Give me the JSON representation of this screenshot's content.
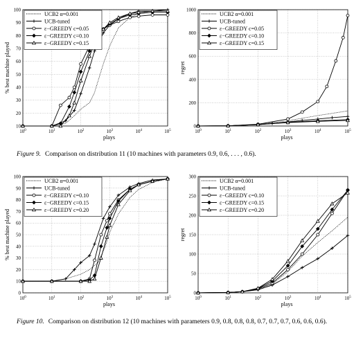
{
  "chart_data": [
    {
      "type": "line",
      "xscale": "log",
      "xlim": [
        1,
        100000
      ],
      "ylim": [
        10,
        100
      ],
      "yticks": [
        10,
        20,
        30,
        40,
        50,
        60,
        70,
        80,
        90,
        100
      ],
      "xlabel": "plays",
      "ylabel": "% best machine played",
      "legend_position": "top-left",
      "series": [
        {
          "name": "UCB2 α=0.001",
          "style": "dotted",
          "marker": "none",
          "x": [
            1,
            10,
            30,
            60,
            100,
            200,
            300,
            600,
            1000,
            2000,
            5000,
            10000,
            30000,
            100000
          ],
          "y": [
            10,
            10,
            12,
            18,
            23,
            28,
            36,
            58,
            72,
            86,
            94,
            97,
            99,
            100
          ]
        },
        {
          "name": "UCB-tuned",
          "style": "solid",
          "marker": "plus",
          "x": [
            1,
            10,
            30,
            60,
            100,
            200,
            300,
            600,
            1000,
            2000,
            5000,
            10000,
            30000,
            100000
          ],
          "y": [
            10,
            10,
            14,
            22,
            35,
            55,
            68,
            82,
            88,
            93,
            97,
            99,
            99,
            100
          ]
        },
        {
          "name": "ε−GREEDY c=0.05",
          "style": "solid",
          "marker": "circle",
          "x": [
            1,
            10,
            20,
            40,
            60,
            100,
            200,
            300,
            600,
            1000,
            2000,
            5000,
            10000,
            30000,
            100000
          ],
          "y": [
            10,
            10,
            26,
            32,
            40,
            58,
            72,
            78,
            85,
            88,
            91,
            94,
            95,
            96,
            96
          ]
        },
        {
          "name": "ε−GREEDY c=0.10",
          "style": "solid",
          "marker": "diamond",
          "x": [
            1,
            10,
            20,
            40,
            60,
            100,
            200,
            300,
            600,
            1000,
            2000,
            5000,
            10000,
            30000,
            100000
          ],
          "y": [
            10,
            10,
            12,
            25,
            36,
            52,
            68,
            76,
            85,
            89,
            93,
            96,
            97,
            98,
            98
          ]
        },
        {
          "name": "ε−GREEDY c=0.15",
          "style": "solid",
          "marker": "triangle",
          "x": [
            1,
            10,
            20,
            40,
            60,
            100,
            200,
            300,
            600,
            1000,
            2000,
            5000,
            10000,
            30000,
            100000
          ],
          "y": [
            10,
            10,
            10,
            18,
            28,
            45,
            64,
            74,
            85,
            90,
            94,
            97,
            98,
            99,
            99
          ]
        }
      ]
    },
    {
      "type": "line",
      "xscale": "log",
      "xlim": [
        1,
        100000
      ],
      "ylim": [
        0,
        1000
      ],
      "yticks": [
        0,
        200,
        400,
        600,
        800,
        1000
      ],
      "xlabel": "plays",
      "ylabel": "regret",
      "legend_position": "top-left",
      "series": [
        {
          "name": "UCB2 α=0.001",
          "style": "dotted",
          "marker": "none",
          "x": [
            1,
            10,
            100,
            1000,
            10000,
            100000
          ],
          "y": [
            0,
            2,
            12,
            45,
            90,
            130
          ]
        },
        {
          "name": "UCB-tuned",
          "style": "solid",
          "marker": "plus",
          "x": [
            1,
            10,
            100,
            300,
            1000,
            3000,
            10000,
            30000,
            100000
          ],
          "y": [
            0,
            2,
            12,
            22,
            35,
            48,
            60,
            72,
            82
          ]
        },
        {
          "name": "ε−GREEDY c=0.05",
          "style": "solid",
          "marker": "circle",
          "x": [
            1,
            10,
            100,
            1000,
            3000,
            10000,
            20000,
            40000,
            70000,
            100000
          ],
          "y": [
            0,
            2,
            15,
            60,
            120,
            210,
            340,
            560,
            760,
            950
          ]
        },
        {
          "name": "ε−GREEDY c=0.10",
          "style": "solid",
          "marker": "diamond",
          "x": [
            1,
            10,
            100,
            1000,
            10000,
            100000
          ],
          "y": [
            0,
            2,
            12,
            32,
            45,
            55
          ]
        },
        {
          "name": "ε−GREEDY c=0.15",
          "style": "solid",
          "marker": "triangle",
          "x": [
            1,
            10,
            100,
            1000,
            10000,
            100000
          ],
          "y": [
            0,
            2,
            12,
            30,
            40,
            48
          ]
        }
      ]
    },
    {
      "type": "line",
      "xscale": "log",
      "xlim": [
        1,
        100000
      ],
      "ylim": [
        0,
        100
      ],
      "yticks": [
        0,
        10,
        20,
        30,
        40,
        50,
        60,
        70,
        80,
        90,
        100
      ],
      "xlabel": "plays",
      "ylabel": "% best machine played",
      "legend_position": "top-left",
      "series": [
        {
          "name": "UCB2 α=0.001",
          "style": "dotted",
          "marker": "none",
          "x": [
            1,
            10,
            30,
            100,
            200,
            400,
            700,
            1000,
            2000,
            5000,
            10000,
            30000,
            100000
          ],
          "y": [
            10,
            10,
            12,
            16,
            20,
            26,
            40,
            52,
            68,
            82,
            89,
            95,
            98
          ]
        },
        {
          "name": "UCB-tuned",
          "style": "solid",
          "marker": "plus",
          "x": [
            1,
            10,
            30,
            60,
            100,
            200,
            300,
            600,
            1000,
            2000,
            5000,
            10000,
            30000,
            100000
          ],
          "y": [
            10,
            10,
            12,
            20,
            26,
            32,
            42,
            64,
            74,
            84,
            91,
            94,
            97,
            98
          ]
        },
        {
          "name": "ε−GREEDY c=0.10",
          "style": "solid",
          "marker": "circle",
          "x": [
            1,
            10,
            100,
            200,
            300,
            500,
            800,
            1000,
            2000,
            5000,
            10000,
            30000,
            100000
          ],
          "y": [
            10,
            10,
            10,
            12,
            28,
            50,
            62,
            68,
            80,
            89,
            93,
            96,
            98
          ]
        },
        {
          "name": "ε−GREEDY c=0.15",
          "style": "solid",
          "marker": "diamond",
          "x": [
            1,
            10,
            100,
            200,
            300,
            500,
            800,
            1000,
            2000,
            5000,
            10000,
            30000,
            100000
          ],
          "y": [
            10,
            10,
            10,
            11,
            15,
            40,
            56,
            64,
            79,
            89,
            93,
            96,
            98
          ]
        },
        {
          "name": "ε−GREEDY c=0.20",
          "style": "solid",
          "marker": "triangle",
          "x": [
            1,
            10,
            100,
            200,
            300,
            500,
            800,
            1000,
            2000,
            5000,
            10000,
            30000,
            100000
          ],
          "y": [
            10,
            10,
            10,
            10,
            12,
            30,
            48,
            58,
            76,
            88,
            93,
            96,
            98
          ]
        }
      ]
    },
    {
      "type": "line",
      "xscale": "log",
      "xlim": [
        1,
        100000
      ],
      "ylim": [
        0,
        300
      ],
      "yticks": [
        0,
        50,
        100,
        150,
        200,
        250,
        300
      ],
      "xlabel": "plays",
      "ylabel": "regret",
      "legend_position": "top-left",
      "series": [
        {
          "name": "UCB2 α=0.001",
          "style": "dotted",
          "marker": "none",
          "x": [
            1,
            10,
            30,
            100,
            300,
            1000,
            3000,
            10000,
            30000,
            100000
          ],
          "y": [
            0,
            1,
            3,
            8,
            22,
            55,
            95,
            130,
            160,
            195
          ]
        },
        {
          "name": "UCB-tuned",
          "style": "solid",
          "marker": "plus",
          "x": [
            1,
            10,
            30,
            100,
            300,
            1000,
            3000,
            10000,
            30000,
            100000
          ],
          "y": [
            0,
            1,
            3,
            8,
            20,
            42,
            65,
            88,
            115,
            148
          ]
        },
        {
          "name": "ε−GREEDY c=0.10",
          "style": "solid",
          "marker": "circle",
          "x": [
            1,
            10,
            30,
            100,
            300,
            1000,
            3000,
            10000,
            30000,
            100000
          ],
          "y": [
            0,
            1,
            3,
            10,
            25,
            60,
            100,
            150,
            205,
            265
          ]
        },
        {
          "name": "ε−GREEDY c=0.15",
          "style": "solid",
          "marker": "diamond",
          "x": [
            1,
            10,
            30,
            100,
            300,
            1000,
            3000,
            10000,
            30000,
            100000
          ],
          "y": [
            0,
            1,
            3,
            11,
            30,
            70,
            120,
            165,
            215,
            265
          ]
        },
        {
          "name": "ε−GREEDY c=0.20",
          "style": "solid",
          "marker": "triangle",
          "x": [
            1,
            10,
            30,
            100,
            300,
            1000,
            3000,
            10000,
            30000,
            100000
          ],
          "y": [
            0,
            1,
            3,
            12,
            35,
            82,
            135,
            185,
            230,
            258
          ]
        }
      ]
    }
  ],
  "captions": [
    {
      "label": "Figure 9.",
      "text": "Comparison on distribution 11 (10 machines with parameters 0.9, 0.6, . . . , 0.6)."
    },
    {
      "label": "Figure 10.",
      "text": "Comparison on distribution 12 (10 machines with parameters 0.9, 0.8, 0.8, 0.8, 0.7, 0.7, 0.7, 0.6, 0.6, 0.6)."
    }
  ]
}
